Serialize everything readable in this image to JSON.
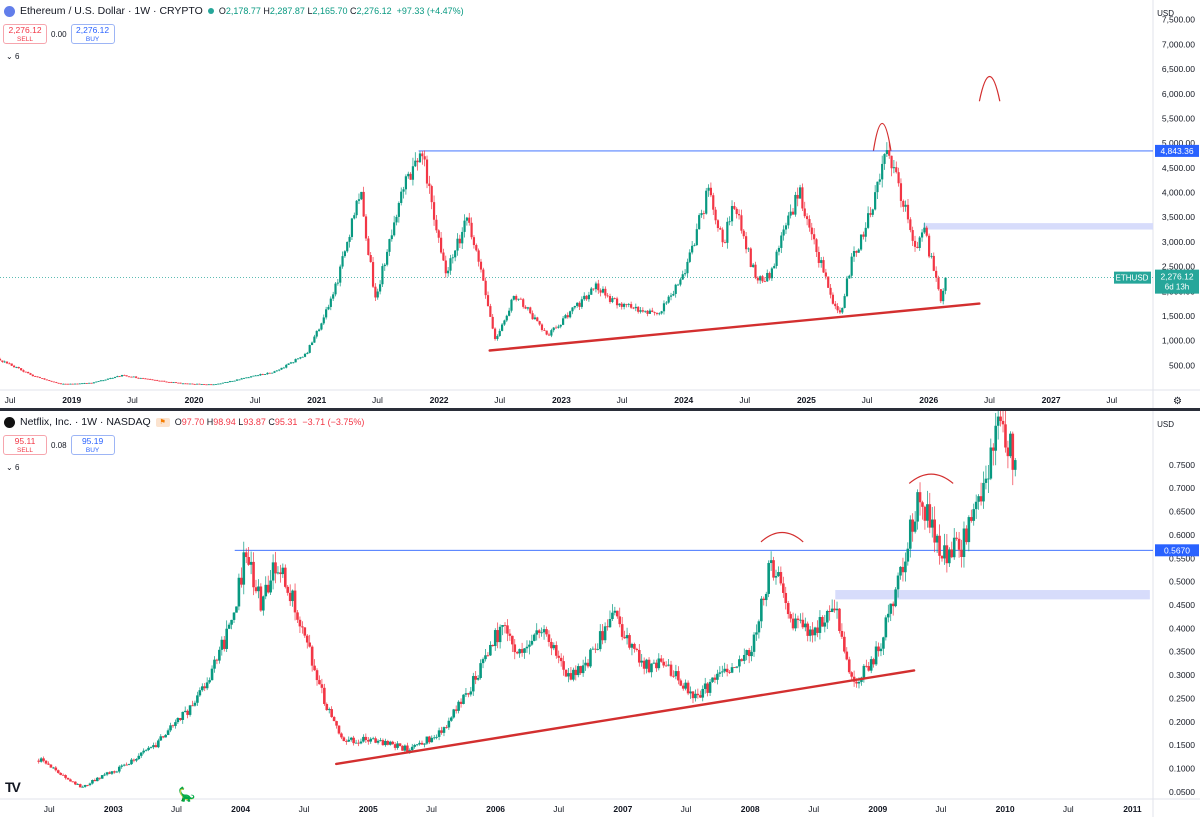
{
  "charts": [
    {
      "symbol": "Ethereum / U.S. Dollar · 1W · CRYPTO",
      "ohlc": [
        [
          "O",
          "2,178.77"
        ],
        [
          "H",
          "2,287.87"
        ],
        [
          "L",
          "2,165.70"
        ],
        [
          "C",
          "2,276.12"
        ]
      ],
      "change": "+97.33 (+4.47%)",
      "change_negative": false,
      "sell_price": "2,276.12",
      "sell_label": "SELL",
      "spread": "0.00",
      "buy_price": "2,276.12",
      "buy_label": "BUY",
      "indicator_toggle": "6",
      "currency": "USD",
      "logo_color": "#627eea"
    },
    {
      "symbol": "Netflix, Inc. · 1W · NASDAQ",
      "ohlc": [
        [
          "O",
          "97.70"
        ],
        [
          "H",
          "98.94"
        ],
        [
          "L",
          "93.87"
        ],
        [
          "C",
          "95.31"
        ]
      ],
      "change": "−3.71 (−3.75%)",
      "change_negative": true,
      "sell_price": "95.11",
      "sell_label": "SELL",
      "spread": "0.08",
      "buy_price": "95.19",
      "buy_label": "BUY",
      "indicator_toggle": "6",
      "currency": "USD",
      "logo_color": "#111111"
    }
  ],
  "chart_data": [
    {
      "type": "candlestick",
      "title": "Ethereum / U.S. Dollar · 1W · CRYPTO",
      "x_range": [
        "2018-06-01",
        "2027-11-01"
      ],
      "ylim": [
        0,
        7900
      ],
      "y_ticks": [
        500,
        1000,
        1500,
        2000,
        2500,
        3000,
        3500,
        4000,
        4500,
        5000,
        5500,
        6000,
        6500,
        7000,
        7500
      ],
      "y_tick_labels": [
        "500.00",
        "1,000.00",
        "1,500.00",
        "2,000.00",
        "2,500.00",
        "3,000.00",
        "3,500.00",
        "4,000.00",
        "4,500.00",
        "5,000.00",
        "5,500.00",
        "6,000.00",
        "6,500.00",
        "7,000.00",
        "7,500.00"
      ],
      "x_ticks": [
        {
          "date": "2018-07-01",
          "label": "Jul",
          "major": false
        },
        {
          "date": "2019-01-01",
          "label": "2019",
          "major": true
        },
        {
          "date": "2019-07-01",
          "label": "Jul",
          "major": false
        },
        {
          "date": "2020-01-01",
          "label": "2020",
          "major": true
        },
        {
          "date": "2020-07-01",
          "label": "Jul",
          "major": false
        },
        {
          "date": "2021-01-01",
          "label": "2021",
          "major": true
        },
        {
          "date": "2021-07-01",
          "label": "Jul",
          "major": false
        },
        {
          "date": "2022-01-01",
          "label": "2022",
          "major": true
        },
        {
          "date": "2022-07-01",
          "label": "Jul",
          "major": false
        },
        {
          "date": "2023-01-01",
          "label": "2023",
          "major": true
        },
        {
          "date": "2023-07-01",
          "label": "Jul",
          "major": false
        },
        {
          "date": "2024-01-01",
          "label": "2024",
          "major": true
        },
        {
          "date": "2024-07-01",
          "label": "Jul",
          "major": false
        },
        {
          "date": "2025-01-01",
          "label": "2025",
          "major": true
        },
        {
          "date": "2025-07-01",
          "label": "Jul",
          "major": false
        },
        {
          "date": "2026-01-01",
          "label": "2026",
          "major": true
        },
        {
          "date": "2026-07-01",
          "label": "Jul",
          "major": false
        },
        {
          "date": "2027-01-01",
          "label": "2027",
          "major": true
        },
        {
          "date": "2027-07-01",
          "label": "Jul",
          "major": false
        }
      ],
      "price_path": [
        [
          "2018-06-01",
          620
        ],
        [
          "2018-09-01",
          300
        ],
        [
          "2018-12-01",
          120
        ],
        [
          "2019-03-01",
          140
        ],
        [
          "2019-06-01",
          300
        ],
        [
          "2019-09-01",
          200
        ],
        [
          "2019-12-01",
          130
        ],
        [
          "2020-03-01",
          110
        ],
        [
          "2020-06-01",
          240
        ],
        [
          "2020-09-01",
          380
        ],
        [
          "2020-12-01",
          730
        ],
        [
          "2021-02-20",
          1900
        ],
        [
          "2021-05-10",
          4100
        ],
        [
          "2021-06-25",
          1800
        ],
        [
          "2021-09-05",
          3900
        ],
        [
          "2021-11-10",
          4800
        ],
        [
          "2022-01-20",
          2400
        ],
        [
          "2022-03-30",
          3500
        ],
        [
          "2022-06-18",
          1000
        ],
        [
          "2022-08-15",
          1950
        ],
        [
          "2022-11-20",
          1100
        ],
        [
          "2023-02-15",
          1700
        ],
        [
          "2023-04-15",
          2100
        ],
        [
          "2023-06-15",
          1750
        ],
        [
          "2023-10-20",
          1550
        ],
        [
          "2024-01-10",
          2500
        ],
        [
          "2024-03-12",
          4000
        ],
        [
          "2024-05-01",
          2900
        ],
        [
          "2024-05-25",
          3900
        ],
        [
          "2024-08-05",
          2200
        ],
        [
          "2024-09-10",
          2300
        ],
        [
          "2024-12-10",
          4000
        ],
        [
          "2025-03-01",
          2200
        ],
        [
          "2025-04-09",
          1450
        ],
        [
          "2025-05-15",
          2600
        ],
        [
          "2025-07-20",
          3700
        ],
        [
          "2025-08-24",
          4900
        ],
        [
          "2025-10-10",
          4000
        ],
        [
          "2025-11-20",
          2800
        ],
        [
          "2025-12-20",
          3200
        ],
        [
          "2026-02-05",
          1800
        ],
        [
          "2026-02-20",
          2276
        ]
      ],
      "current_price": {
        "date": "2026-02-20",
        "value": 2276.12,
        "symbol": "ETHUSD",
        "label": "2,276.12",
        "countdown": "6d 13h"
      },
      "horizontal_line": {
        "value": 4843.36,
        "label": "4,843.36",
        "color": "#2962ff",
        "from": "2021-11-01"
      },
      "zone": {
        "from_date": "2025-12-15",
        "to_date": "2027-11-01",
        "y_low": 3250,
        "y_high": 3380,
        "color": "#d7dcfb"
      },
      "trendline": {
        "x1": "2022-06-01",
        "y1": 800,
        "x2": "2026-06-01",
        "y2": 1750,
        "color": "#d32f2f"
      },
      "annotations": [
        {
          "type": "arc",
          "x1": "2025-07-20",
          "x2": "2025-09-10",
          "y_base": 4850,
          "y_peak": 5400
        },
        {
          "type": "arc",
          "x1": "2026-06-01",
          "x2": "2026-08-01",
          "y_base": 5850,
          "y_peak": 6350
        }
      ]
    },
    {
      "type": "candlestick",
      "title": "Netflix, Inc. · 1W · NASDAQ",
      "x_range": [
        "2002-02-10",
        "2011-03-01"
      ],
      "ylim": [
        0.035,
        0.865
      ],
      "y_ticks": [
        0.05,
        0.1,
        0.15,
        0.2,
        0.25,
        0.3,
        0.35,
        0.4,
        0.45,
        0.5,
        0.55,
        0.6,
        0.65,
        0.7,
        0.75
      ],
      "y_tick_labels": [
        "0.0500",
        "0.1000",
        "0.1500",
        "0.2000",
        "0.2500",
        "0.3000",
        "0.3500",
        "0.4000",
        "0.4500",
        "0.5000",
        "0.5500",
        "0.6000",
        "0.6500",
        "0.7000",
        "0.7500"
      ],
      "x_ticks": [
        {
          "date": "2002-07-01",
          "label": "Jul",
          "major": false
        },
        {
          "date": "2003-01-01",
          "label": "2003",
          "major": true
        },
        {
          "date": "2003-07-01",
          "label": "Jul",
          "major": false
        },
        {
          "date": "2004-01-01",
          "label": "2004",
          "major": true
        },
        {
          "date": "2004-07-01",
          "label": "Jul",
          "major": false
        },
        {
          "date": "2005-01-01",
          "label": "2005",
          "major": true
        },
        {
          "date": "2005-07-01",
          "label": "Jul",
          "major": false
        },
        {
          "date": "2006-01-01",
          "label": "2006",
          "major": true
        },
        {
          "date": "2006-07-01",
          "label": "Jul",
          "major": false
        },
        {
          "date": "2007-01-01",
          "label": "2007",
          "major": true
        },
        {
          "date": "2007-07-01",
          "label": "Jul",
          "major": false
        },
        {
          "date": "2008-01-01",
          "label": "2008",
          "major": true
        },
        {
          "date": "2008-07-01",
          "label": "Jul",
          "major": false
        },
        {
          "date": "2009-01-01",
          "label": "2009",
          "major": true
        },
        {
          "date": "2009-07-01",
          "label": "Jul",
          "major": false
        },
        {
          "date": "2010-01-01",
          "label": "2010",
          "major": true
        },
        {
          "date": "2010-07-01",
          "label": "Jul",
          "major": false
        },
        {
          "date": "2011-01-01",
          "label": "2011",
          "major": true
        }
      ],
      "price_path": [
        [
          "2002-06-01",
          0.12
        ],
        [
          "2002-08-01",
          0.09
        ],
        [
          "2002-10-01",
          0.06
        ],
        [
          "2003-01-15",
          0.1
        ],
        [
          "2003-05-01",
          0.15
        ],
        [
          "2003-09-01",
          0.25
        ],
        [
          "2003-12-01",
          0.4
        ],
        [
          "2004-01-15",
          0.56
        ],
        [
          "2004-03-01",
          0.45
        ],
        [
          "2004-04-15",
          0.55
        ],
        [
          "2004-07-01",
          0.4
        ],
        [
          "2004-08-01",
          0.3
        ],
        [
          "2004-10-15",
          0.16
        ],
        [
          "2005-01-15",
          0.16
        ],
        [
          "2005-05-01",
          0.14
        ],
        [
          "2005-08-01",
          0.18
        ],
        [
          "2005-11-01",
          0.29
        ],
        [
          "2006-01-15",
          0.4
        ],
        [
          "2006-03-15",
          0.35
        ],
        [
          "2006-05-01",
          0.41
        ],
        [
          "2006-08-01",
          0.29
        ],
        [
          "2006-10-01",
          0.34
        ],
        [
          "2006-12-01",
          0.43
        ],
        [
          "2007-03-01",
          0.32
        ],
        [
          "2007-05-01",
          0.32
        ],
        [
          "2007-08-01",
          0.25
        ],
        [
          "2007-10-01",
          0.3
        ],
        [
          "2008-01-01",
          0.35
        ],
        [
          "2008-03-01",
          0.54
        ],
        [
          "2008-05-01",
          0.42
        ],
        [
          "2008-07-01",
          0.39
        ],
        [
          "2008-09-01",
          0.44
        ],
        [
          "2008-10-25",
          0.28
        ],
        [
          "2009-01-01",
          0.35
        ],
        [
          "2009-03-01",
          0.5
        ],
        [
          "2009-05-01",
          0.7
        ],
        [
          "2009-07-01",
          0.55
        ],
        [
          "2009-09-01",
          0.58
        ],
        [
          "2009-11-01",
          0.68
        ],
        [
          "2009-12-15",
          0.84
        ],
        [
          "2010-02-01",
          0.76
        ]
      ],
      "horizontal_line": {
        "value": 0.567,
        "label": "0.5670",
        "color": "#2962ff",
        "from": "2003-12-15"
      },
      "zone": {
        "from_date": "2008-09-01",
        "to_date": "2011-02-20",
        "y_low": 0.462,
        "y_high": 0.482,
        "color": "#d7dcfb"
      },
      "trendline": {
        "x1": "2004-10-01",
        "y1": 0.11,
        "x2": "2009-04-15",
        "y2": 0.31,
        "color": "#d32f2f"
      },
      "annotations": [
        {
          "type": "arc",
          "x1": "2008-02-01",
          "x2": "2008-06-01",
          "y_base": 0.585,
          "y_peak": 0.605
        },
        {
          "type": "arc",
          "x1": "2009-04-01",
          "x2": "2009-08-05",
          "y_base": 0.71,
          "y_peak": 0.73
        }
      ]
    }
  ]
}
